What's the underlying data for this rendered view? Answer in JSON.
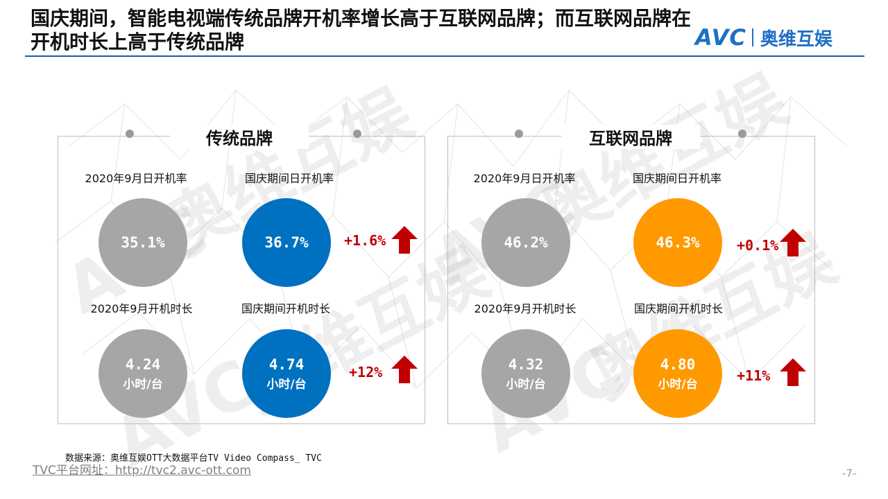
{
  "header": {
    "title": "国庆期间，智能电视端传统品牌开机率增长高于互联网品牌；而互联网品牌在开机时长上高于传统品牌",
    "logo_text": "AVC",
    "logo_cn": "奥维互娱"
  },
  "watermark": {
    "text_cn": "奥维互娱",
    "text_en": "AVC"
  },
  "colors": {
    "title_rule": "#1f5aa6",
    "gray": "#a6a6a6",
    "blue": "#0070c0",
    "orange": "#ff9900",
    "change_red": "#c00000"
  },
  "panels": [
    {
      "title": "传统品牌",
      "rate": {
        "base_label": "2020年9月日开机率",
        "base_value": "35.1%",
        "holiday_label": "国庆期间日开机率",
        "holiday_value": "36.7%",
        "change": "+1.6%"
      },
      "duration": {
        "base_label": "2020年9月开机时长",
        "base_value": "4.24",
        "holiday_label": "国庆期间开机时长",
        "holiday_value": "4.74",
        "unit": "小时/台",
        "change": "+12%"
      }
    },
    {
      "title": "互联网品牌",
      "rate": {
        "base_label": "2020年9月日开机率",
        "base_value": "46.2%",
        "holiday_label": "国庆期间日开机率",
        "holiday_value": "46.3%",
        "change": "+0.1%"
      },
      "duration": {
        "base_label": "2020年9月开机时长",
        "base_value": "4.32",
        "holiday_label": "国庆期间开机时长",
        "holiday_value": "4.80",
        "unit": "小时/台",
        "change": "+11%"
      }
    }
  ],
  "footer": {
    "source": "数据来源：奥维互娱OTT大数据平台TV Video Compass_ TVC",
    "url": "TVC平台网址：http://tvc2.avc-ott.com",
    "page": "-7-"
  }
}
